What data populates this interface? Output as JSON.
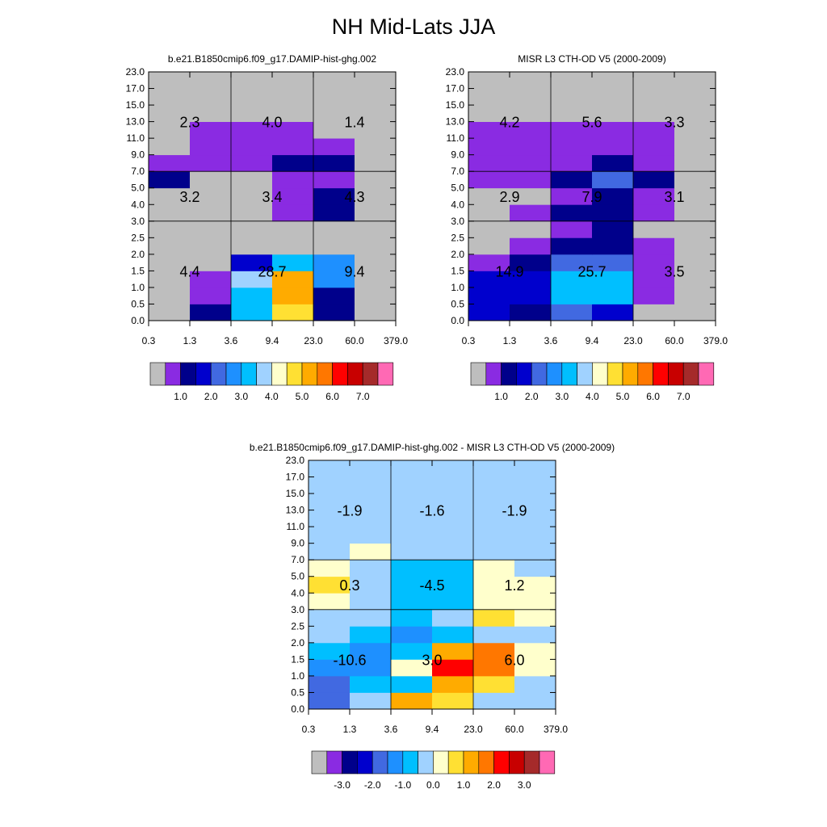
{
  "title": "NH Mid-Lats JJA",
  "palette": [
    "#bebebe",
    "#8a2be2",
    "#00008b",
    "#0000cd",
    "#4169e1",
    "#1e90ff",
    "#00bfff",
    "#a0d2ff",
    "#ffffcc",
    "#ffe033",
    "#ffab00",
    "#ff7700",
    "#ff0000",
    "#c80000",
    "#a52a2a",
    "#ff69b4"
  ],
  "chart_data": [
    {
      "type": "heatmap",
      "title": "b.e21.B1850cmip6.f09_g17.DAMIP-hist-ghg.002",
      "x_ticks": [
        "0.3",
        "1.3",
        "3.6",
        "9.4",
        "23.0",
        "60.0",
        "379.0"
      ],
      "y_ticks": [
        "0.0",
        "0.5",
        "1.0",
        "1.5",
        "2.0",
        "2.5",
        "3.0",
        "4.0",
        "5.0",
        "7.0",
        "9.0",
        "11.0",
        "13.0",
        "15.0",
        "17.0",
        "23.0"
      ],
      "legend_labels": [
        "1.0",
        "2.0",
        "3.0",
        "4.0",
        "5.0",
        "6.0",
        "7.0"
      ],
      "cells": [
        [
          0,
          2,
          6,
          9,
          2,
          0
        ],
        [
          0,
          1,
          6,
          10,
          2,
          0
        ],
        [
          0,
          1,
          7,
          10,
          5,
          0
        ],
        [
          0,
          0,
          3,
          6,
          5,
          0
        ],
        [
          0,
          0,
          0,
          0,
          0,
          0
        ],
        [
          0,
          0,
          0,
          0,
          0,
          0
        ],
        [
          0,
          0,
          0,
          1,
          2,
          0
        ],
        [
          0,
          0,
          0,
          1,
          2,
          0
        ],
        [
          2,
          0,
          0,
          1,
          1,
          0
        ],
        [
          1,
          1,
          1,
          2,
          2,
          0
        ],
        [
          0,
          1,
          1,
          1,
          1,
          0
        ],
        [
          0,
          1,
          1,
          1,
          0,
          0
        ],
        [
          0,
          0,
          0,
          0,
          0,
          0
        ],
        [
          0,
          0,
          0,
          0,
          0,
          0
        ],
        [
          0,
          0,
          0,
          0,
          0,
          0
        ]
      ],
      "region_labels": [
        {
          "x": 1,
          "y": 12,
          "text": "2.3"
        },
        {
          "x": 3,
          "y": 12,
          "text": "4.0"
        },
        {
          "x": 5,
          "y": 12,
          "text": "1.4"
        },
        {
          "x": 1,
          "y": 7.5,
          "text": "3.2"
        },
        {
          "x": 3,
          "y": 7.5,
          "text": "3.4"
        },
        {
          "x": 5,
          "y": 7.5,
          "text": "4.3"
        },
        {
          "x": 1,
          "y": 3,
          "text": "4.4"
        },
        {
          "x": 3,
          "y": 3,
          "text": "28.7"
        },
        {
          "x": 5,
          "y": 3,
          "text": "9.4"
        }
      ]
    },
    {
      "type": "heatmap",
      "title": "MISR L3 CTH-OD V5 (2000-2009)",
      "x_ticks": [
        "0.3",
        "1.3",
        "3.6",
        "9.4",
        "23.0",
        "60.0",
        "379.0"
      ],
      "y_ticks": [
        "0.0",
        "0.5",
        "1.0",
        "1.5",
        "2.0",
        "2.5",
        "3.0",
        "4.0",
        "5.0",
        "7.0",
        "9.0",
        "11.0",
        "13.0",
        "15.0",
        "17.0",
        "23.0"
      ],
      "legend_labels": [
        "1.0",
        "2.0",
        "3.0",
        "4.0",
        "5.0",
        "6.0",
        "7.0"
      ],
      "cells": [
        [
          3,
          2,
          4,
          3,
          0,
          0
        ],
        [
          3,
          3,
          6,
          6,
          1,
          0
        ],
        [
          3,
          3,
          6,
          6,
          1,
          0
        ],
        [
          1,
          2,
          4,
          4,
          1,
          0
        ],
        [
          0,
          1,
          2,
          2,
          1,
          0
        ],
        [
          0,
          0,
          1,
          2,
          0,
          0
        ],
        [
          0,
          1,
          2,
          2,
          1,
          0
        ],
        [
          0,
          0,
          1,
          2,
          1,
          0
        ],
        [
          1,
          1,
          2,
          4,
          2,
          0
        ],
        [
          1,
          1,
          1,
          2,
          1,
          0
        ],
        [
          1,
          1,
          1,
          1,
          1,
          0
        ],
        [
          1,
          1,
          1,
          1,
          1,
          0
        ],
        [
          0,
          0,
          0,
          0,
          0,
          0
        ],
        [
          0,
          0,
          0,
          0,
          0,
          0
        ],
        [
          0,
          0,
          0,
          0,
          0,
          0
        ]
      ],
      "region_labels": [
        {
          "x": 1,
          "y": 12,
          "text": "4.2"
        },
        {
          "x": 3,
          "y": 12,
          "text": "5.6"
        },
        {
          "x": 5,
          "y": 12,
          "text": "3.3"
        },
        {
          "x": 1,
          "y": 7.5,
          "text": "2.9"
        },
        {
          "x": 3,
          "y": 7.5,
          "text": "7.9"
        },
        {
          "x": 5,
          "y": 7.5,
          "text": "3.1"
        },
        {
          "x": 1,
          "y": 3,
          "text": "14.9"
        },
        {
          "x": 3,
          "y": 3,
          "text": "25.7"
        },
        {
          "x": 5,
          "y": 3,
          "text": "3.5"
        }
      ]
    },
    {
      "type": "heatmap",
      "title": "b.e21.B1850cmip6.f09_g17.DAMIP-hist-ghg.002 - MISR L3 CTH-OD V5 (2000-2009)",
      "x_ticks": [
        "0.3",
        "1.3",
        "3.6",
        "9.4",
        "23.0",
        "60.0",
        "379.0"
      ],
      "y_ticks": [
        "0.0",
        "0.5",
        "1.0",
        "1.5",
        "2.0",
        "2.5",
        "3.0",
        "4.0",
        "5.0",
        "7.0",
        "9.0",
        "11.0",
        "13.0",
        "15.0",
        "17.0",
        "23.0"
      ],
      "legend_labels": [
        "-3.0",
        "-2.0",
        "-1.0",
        "0.0",
        "1.0",
        "2.0",
        "3.0"
      ],
      "cells": [
        [
          4,
          7,
          10,
          9,
          7,
          7
        ],
        [
          4,
          6,
          6,
          10,
          9,
          7
        ],
        [
          5,
          5,
          8,
          12,
          11,
          8
        ],
        [
          6,
          5,
          6,
          10,
          11,
          8
        ],
        [
          7,
          6,
          5,
          6,
          7,
          7
        ],
        [
          7,
          7,
          6,
          7,
          9,
          8
        ],
        [
          8,
          7,
          6,
          6,
          8,
          8
        ],
        [
          9,
          7,
          6,
          6,
          8,
          8
        ],
        [
          8,
          7,
          6,
          6,
          8,
          7
        ],
        [
          7,
          8,
          7,
          7,
          7,
          7
        ],
        [
          7,
          7,
          7,
          7,
          7,
          7
        ],
        [
          7,
          7,
          7,
          7,
          7,
          7
        ],
        [
          7,
          7,
          7,
          7,
          7,
          7
        ],
        [
          7,
          7,
          7,
          7,
          7,
          7
        ],
        [
          7,
          7,
          7,
          7,
          7,
          7
        ]
      ],
      "region_labels": [
        {
          "x": 1,
          "y": 12,
          "text": "-1.9"
        },
        {
          "x": 3,
          "y": 12,
          "text": "-1.6"
        },
        {
          "x": 5,
          "y": 12,
          "text": "-1.9"
        },
        {
          "x": 1,
          "y": 7.5,
          "text": "0.3"
        },
        {
          "x": 3,
          "y": 7.5,
          "text": "-4.5"
        },
        {
          "x": 5,
          "y": 7.5,
          "text": "1.2"
        },
        {
          "x": 1,
          "y": 3,
          "text": "-10.6"
        },
        {
          "x": 3,
          "y": 3,
          "text": "3.0"
        },
        {
          "x": 5,
          "y": 3,
          "text": "6.0"
        }
      ]
    }
  ]
}
